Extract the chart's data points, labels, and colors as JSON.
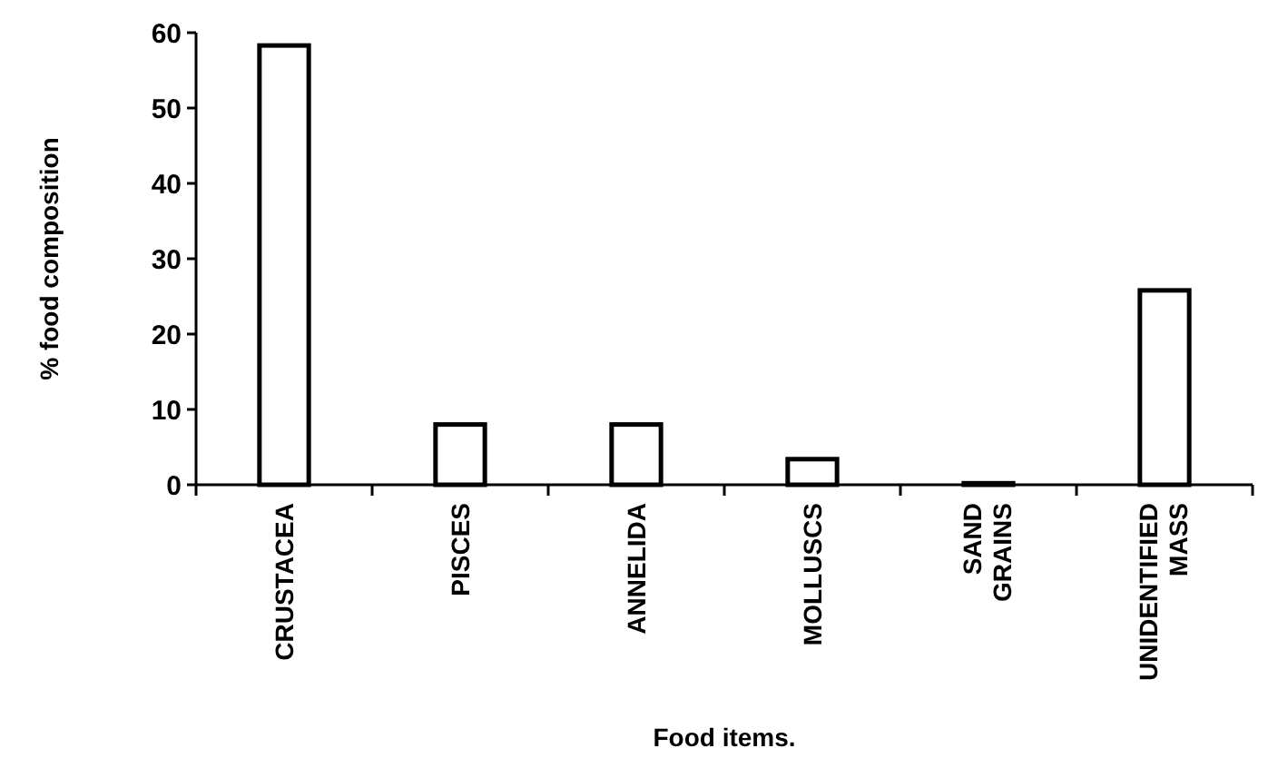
{
  "chart_data": {
    "type": "bar",
    "xlabel": "Food items.",
    "ylabel": "% food composition",
    "categories": [
      "CRUSTACEA",
      "PISCES",
      "ANNELIDA",
      "MOLLUSCS",
      "SAND\nGRAINS",
      "UNIDENTIFIED\nMASS"
    ],
    "values": [
      58.3,
      8,
      8,
      3.4,
      0.2,
      25.8
    ],
    "color": "#ffffff",
    "ylim": [
      0,
      60
    ],
    "yticks": [
      0,
      10,
      20,
      30,
      40,
      50,
      60
    ],
    "grid": false
  }
}
